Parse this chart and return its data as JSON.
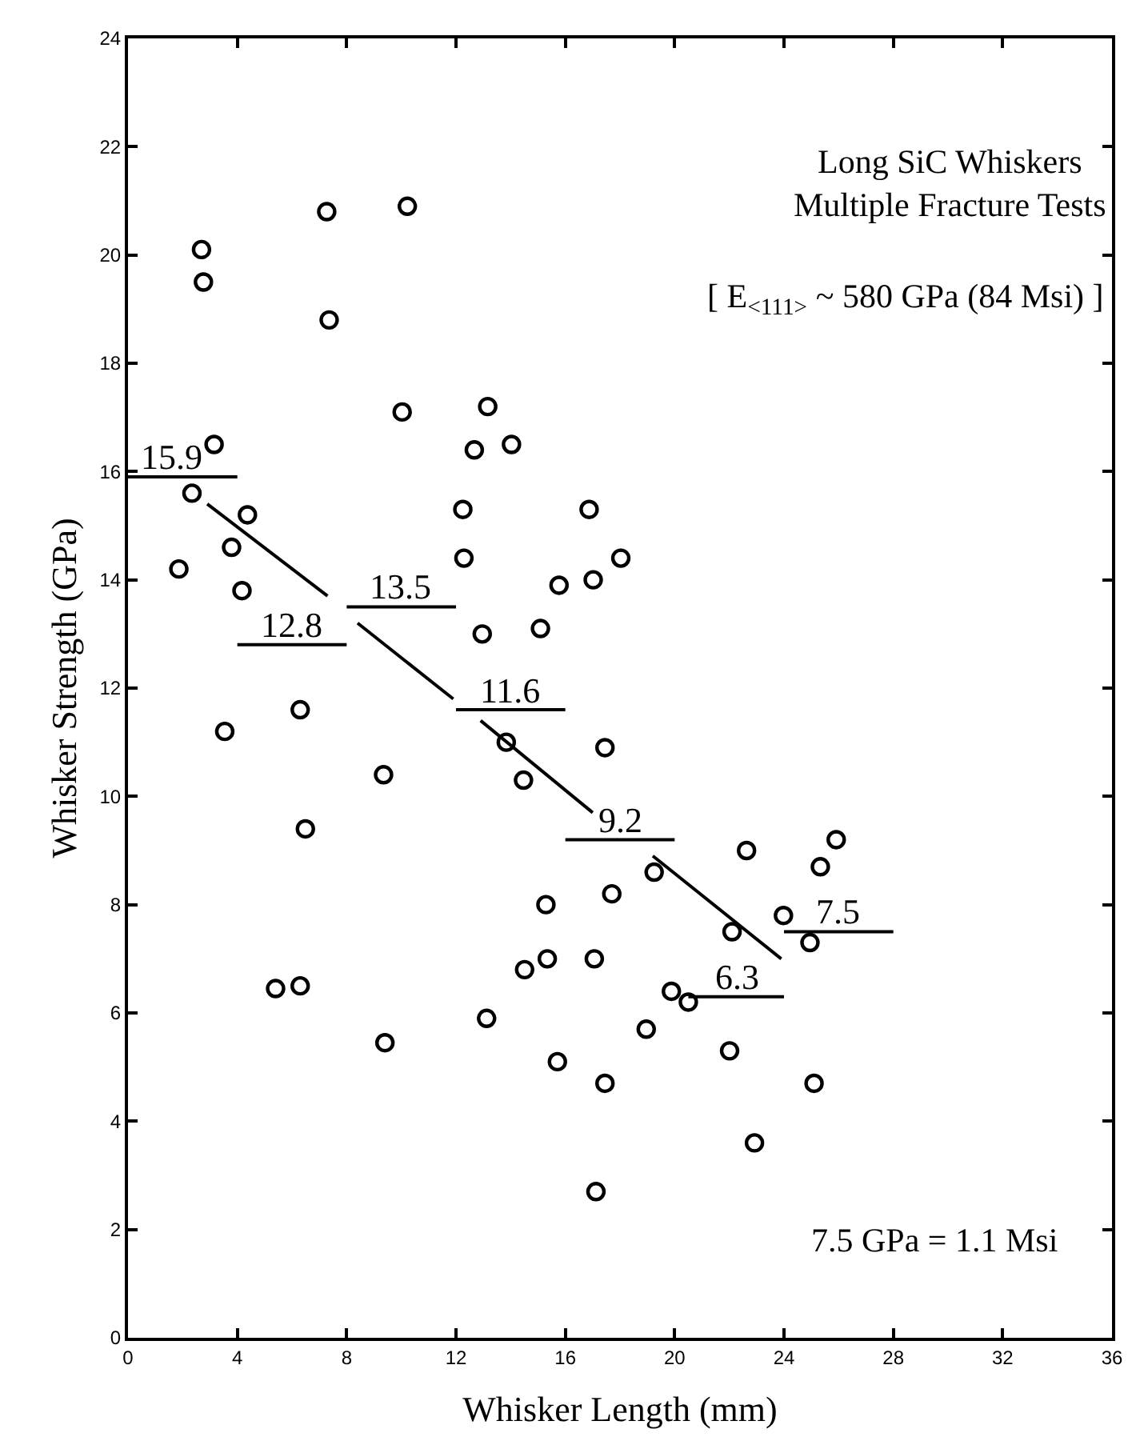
{
  "chart_data": {
    "type": "scatter",
    "xlabel": "Whisker Length (mm)",
    "ylabel": "Whisker Strength (GPa)",
    "xlim": [
      0,
      36
    ],
    "xticks": [
      0,
      4,
      8,
      12,
      16,
      20,
      24,
      28,
      32,
      36
    ],
    "ylim": [
      0,
      24
    ],
    "yticks": [
      0,
      2,
      4,
      6,
      8,
      10,
      12,
      14,
      16,
      18,
      20,
      22,
      24
    ],
    "grid": false,
    "marker": "circle",
    "series": [
      {
        "color": "#000000",
        "x": [
          3.15,
          2.34,
          4.37,
          3.79,
          1.86,
          4.17,
          10.03,
          13.16,
          12.67,
          14.03,
          12.25,
          12.29,
          16.87,
          18.03,
          15.77,
          17.02,
          12.96,
          15.09,
          6.3,
          3.54,
          9.35,
          6.49,
          13.84,
          14.47,
          17.45,
          2.69,
          2.76,
          7.27,
          10.22,
          7.36,
          22.63,
          25.91,
          25.33,
          17.7,
          15.29,
          19.25,
          23.98,
          22.1,
          24.95,
          15.34,
          14.51,
          17.06,
          19.88,
          20.5,
          13.12,
          18.96,
          22.01,
          15.71,
          17.45,
          25.1,
          22.92,
          17.12,
          5.4,
          6.3,
          9.4
        ],
        "values": [
          16.5,
          15.6,
          15.2,
          14.6,
          14.2,
          13.8,
          17.1,
          17.2,
          16.4,
          16.5,
          15.3,
          14.4,
          15.3,
          14.4,
          13.9,
          14.0,
          13.0,
          13.1,
          11.6,
          11.2,
          10.4,
          9.4,
          11.0,
          10.3,
          10.9,
          20.1,
          19.5,
          20.8,
          20.9,
          18.8,
          9.0,
          9.2,
          8.7,
          8.2,
          8.0,
          8.6,
          7.8,
          7.5,
          7.3,
          7.0,
          6.8,
          7.0,
          6.4,
          6.2,
          5.9,
          5.7,
          5.3,
          5.1,
          4.7,
          4.7,
          3.6,
          2.7,
          6.45,
          6.5,
          5.45
        ]
      },
      {
        "type": "line",
        "marker": "none",
        "color": "#000000",
        "x": [
          0,
          4
        ],
        "values": [
          15.9,
          15.9
        ]
      },
      {
        "type": "line",
        "marker": "none",
        "color": "#000000",
        "x": [
          4,
          8
        ],
        "values": [
          12.8,
          12.8
        ]
      },
      {
        "type": "line",
        "marker": "none",
        "color": "#000000",
        "x": [
          8,
          12
        ],
        "values": [
          13.5,
          13.5
        ]
      },
      {
        "type": "line",
        "marker": "none",
        "color": "#000000",
        "x": [
          12,
          16
        ],
        "values": [
          11.6,
          11.6
        ]
      },
      {
        "type": "line",
        "marker": "none",
        "color": "#000000",
        "x": [
          16,
          20
        ],
        "values": [
          9.2,
          9.2
        ]
      },
      {
        "type": "line",
        "marker": "none",
        "color": "#000000",
        "x": [
          20.5,
          24
        ],
        "values": [
          6.3,
          6.3
        ]
      },
      {
        "type": "line",
        "marker": "none",
        "color": "#000000",
        "x": [
          24,
          28
        ],
        "values": [
          7.5,
          7.5
        ]
      },
      {
        "type": "line",
        "marker": "none",
        "color": "#000000",
        "x": [
          2.9,
          7.3
        ],
        "values": [
          15.4,
          13.7
        ]
      },
      {
        "type": "line",
        "marker": "none",
        "color": "#000000",
        "x": [
          8.4,
          11.9
        ],
        "values": [
          13.2,
          11.8
        ]
      },
      {
        "type": "line",
        "marker": "none",
        "color": "#000000",
        "x": [
          12.9,
          17.0
        ],
        "values": [
          11.4,
          9.7
        ]
      },
      {
        "type": "line",
        "marker": "none",
        "color": "#000000",
        "x": [
          19.2,
          23.9
        ],
        "values": [
          8.9,
          7.0
        ]
      }
    ],
    "annotations": [
      "Long SiC Whiskers",
      "Multiple Fracture Tests",
      "[ E$_{<111>}$ ~ 580 GPa (84 Msi) ]",
      "7.5 GPa = 1.1 Msi",
      {
        "text": "15.9",
        "x": 1.6,
        "y": 15.9
      },
      {
        "text": "12.8",
        "x": 6.0,
        "y": 12.8
      },
      {
        "text": "13.5",
        "x": 10.0,
        "y": 13.5
      },
      {
        "text": "11.6",
        "x": 14.0,
        "y": 11.6
      },
      {
        "text": "9.2",
        "x": 18.0,
        "y": 9.2
      },
      {
        "text": "6.3",
        "x": 22.3,
        "y": 6.3
      },
      {
        "text": "7.5",
        "x": 26.0,
        "y": 7.5
      }
    ]
  }
}
